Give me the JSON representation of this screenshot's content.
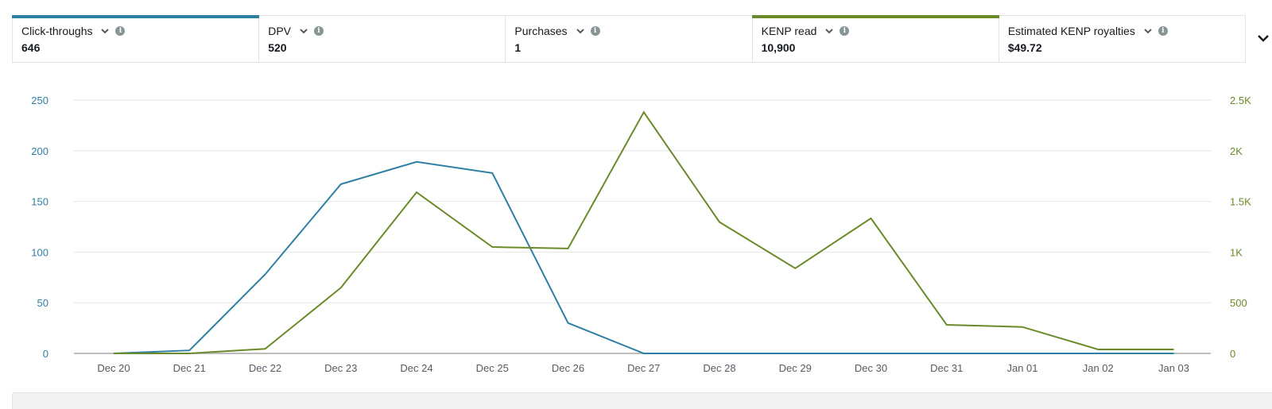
{
  "metrics": [
    {
      "label": "Click-throughs",
      "value": "646",
      "selected": true,
      "color": "#2e7fa3"
    },
    {
      "label": "DPV",
      "value": "520",
      "selected": false,
      "color": null
    },
    {
      "label": "Purchases",
      "value": "1",
      "selected": false,
      "color": null
    },
    {
      "label": "KENP read",
      "value": "10,900",
      "selected": true,
      "color": "#6b8a2a"
    },
    {
      "label": "Estimated KENP royalties",
      "value": "$49.72",
      "selected": false,
      "color": null
    }
  ],
  "icons": {
    "metric_dropdown": "chevron-down-icon",
    "metric_info": "info-icon",
    "expand": "chevron-down-icon"
  },
  "info_glyph": "i",
  "colors": {
    "series_left": "#2e7fa3",
    "series_right": "#6b8a2a",
    "grid": "#e6e6e6",
    "baseline": "#bdbdbd",
    "left_axis_text": "#2e7fa3",
    "right_axis_text": "#6b8a2a",
    "x_axis_text": "#545b64"
  },
  "chart_data": {
    "type": "line",
    "title": "",
    "xlabel": "",
    "ylabel": "Click-throughs",
    "y2label": "KENP read",
    "categories": [
      "Dec 20",
      "Dec 21",
      "Dec 22",
      "Dec 23",
      "Dec 24",
      "Dec 25",
      "Dec 26",
      "Dec 27",
      "Dec 28",
      "Dec 29",
      "Dec 30",
      "Dec 31",
      "Jan 01",
      "Jan 02",
      "Jan 03"
    ],
    "series": [
      {
        "name": "Click-throughs",
        "axis": "left",
        "color": "#2e7fa3",
        "values": [
          0,
          3,
          78,
          167,
          189,
          178,
          30,
          0,
          0,
          0,
          0,
          0,
          0,
          0,
          0
        ]
      },
      {
        "name": "KENP read",
        "axis": "right",
        "color": "#6b8a2a",
        "values": [
          0,
          0,
          45,
          648,
          1590,
          1050,
          1035,
          2380,
          1296,
          840,
          1333,
          282,
          261,
          39,
          39
        ]
      }
    ],
    "ylim": [
      0,
      250
    ],
    "y2lim": [
      0,
      2500
    ],
    "yticks": [
      "0",
      "50",
      "100",
      "150",
      "200",
      "250"
    ],
    "y2ticks": [
      "0",
      "500",
      "1K",
      "1.5K",
      "2K",
      "2.5K"
    ],
    "grid": true,
    "legend": "metric cards above chart"
  }
}
